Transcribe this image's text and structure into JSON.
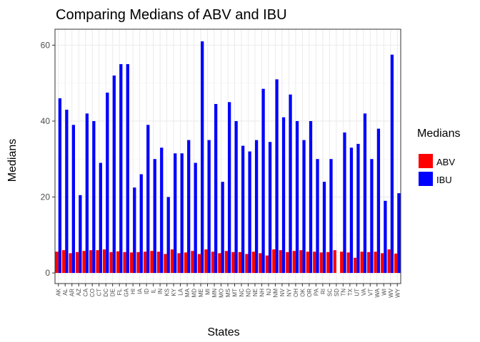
{
  "chart_data": {
    "type": "bar",
    "title": "Comparing Medians of ABV and IBU",
    "xlabel": "States",
    "ylabel": "Medians",
    "ylim": [
      -2.8,
      64.2
    ],
    "yticks": [
      0,
      20,
      40,
      60
    ],
    "grid": true,
    "legend": {
      "title": "Medians",
      "placement": "right"
    },
    "categories": [
      "AK",
      "AL",
      "AR",
      "AZ",
      "CA",
      "CO",
      "CT",
      "DC",
      "DE",
      "FL",
      "GA",
      "HI",
      "IA",
      "ID",
      "IL",
      "IN",
      "KS",
      "KY",
      "LA",
      "MA",
      "MD",
      "ME",
      "MI",
      "MN",
      "MO",
      "MS",
      "MT",
      "NC",
      "ND",
      "NE",
      "NH",
      "NJ",
      "NM",
      "NV",
      "NY",
      "OH",
      "OK",
      "OR",
      "PA",
      "RI",
      "SC",
      "SD",
      "TN",
      "TX",
      "UT",
      "VA",
      "VT",
      "WA",
      "WI",
      "WV",
      "WY"
    ],
    "series": [
      {
        "name": "ABV",
        "color": "#ff0000",
        "values": [
          5.6,
          6.0,
          5.2,
          5.5,
          5.8,
          6.0,
          6.0,
          6.2,
          5.5,
          5.7,
          5.5,
          5.4,
          5.5,
          5.6,
          5.8,
          5.6,
          5.0,
          6.2,
          5.2,
          5.4,
          5.8,
          5.0,
          6.2,
          5.6,
          5.2,
          5.8,
          5.5,
          5.5,
          5.0,
          5.6,
          5.2,
          4.6,
          6.2,
          6.0,
          5.5,
          5.8,
          6.0,
          5.6,
          5.6,
          5.4,
          5.5,
          6.0,
          5.6,
          5.4,
          4.0,
          5.6,
          5.5,
          5.6,
          5.2,
          6.2,
          5.1
        ]
      },
      {
        "name": "IBU",
        "color": "#0000ff",
        "values": [
          46,
          43,
          39,
          20.5,
          42,
          40,
          29,
          47.5,
          52,
          55,
          55,
          22.5,
          26,
          39,
          30,
          33,
          20,
          31.5,
          31.5,
          35,
          29,
          61,
          35,
          44.5,
          24,
          45,
          40,
          33.5,
          32,
          35,
          48.5,
          34.5,
          51,
          41,
          47,
          40,
          35,
          40,
          30,
          24,
          30,
          null,
          37,
          33,
          34,
          42,
          30,
          38,
          19,
          57.5,
          21
        ]
      }
    ]
  }
}
